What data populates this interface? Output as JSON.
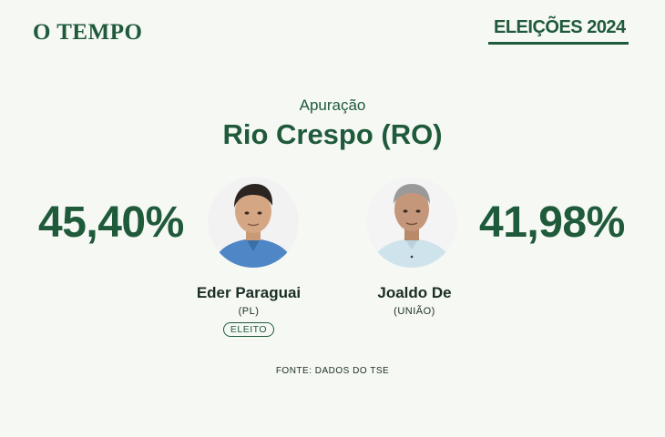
{
  "header": {
    "logo_text": "O TEMPO",
    "badge_text": "ELEIÇÕES 2024"
  },
  "main": {
    "subtitle": "Apuração",
    "title": "Rio Crespo (RO)"
  },
  "candidates": [
    {
      "name": "Eder Paraguai",
      "party": "(PL)",
      "percentage": "45,40%",
      "status": "ELEITO",
      "shirt_color": "#4f86c6"
    },
    {
      "name": "Joaldo De",
      "party": "(UNIÃO)",
      "percentage": "41,98%",
      "shirt_color": "#cfe3ec"
    }
  ],
  "footer": {
    "source": "FONTE: DADOS DO TSE"
  },
  "colors": {
    "brand_green": "#1f5a3a",
    "background": "#f6f8f4",
    "text_dark": "#1a2e24"
  }
}
